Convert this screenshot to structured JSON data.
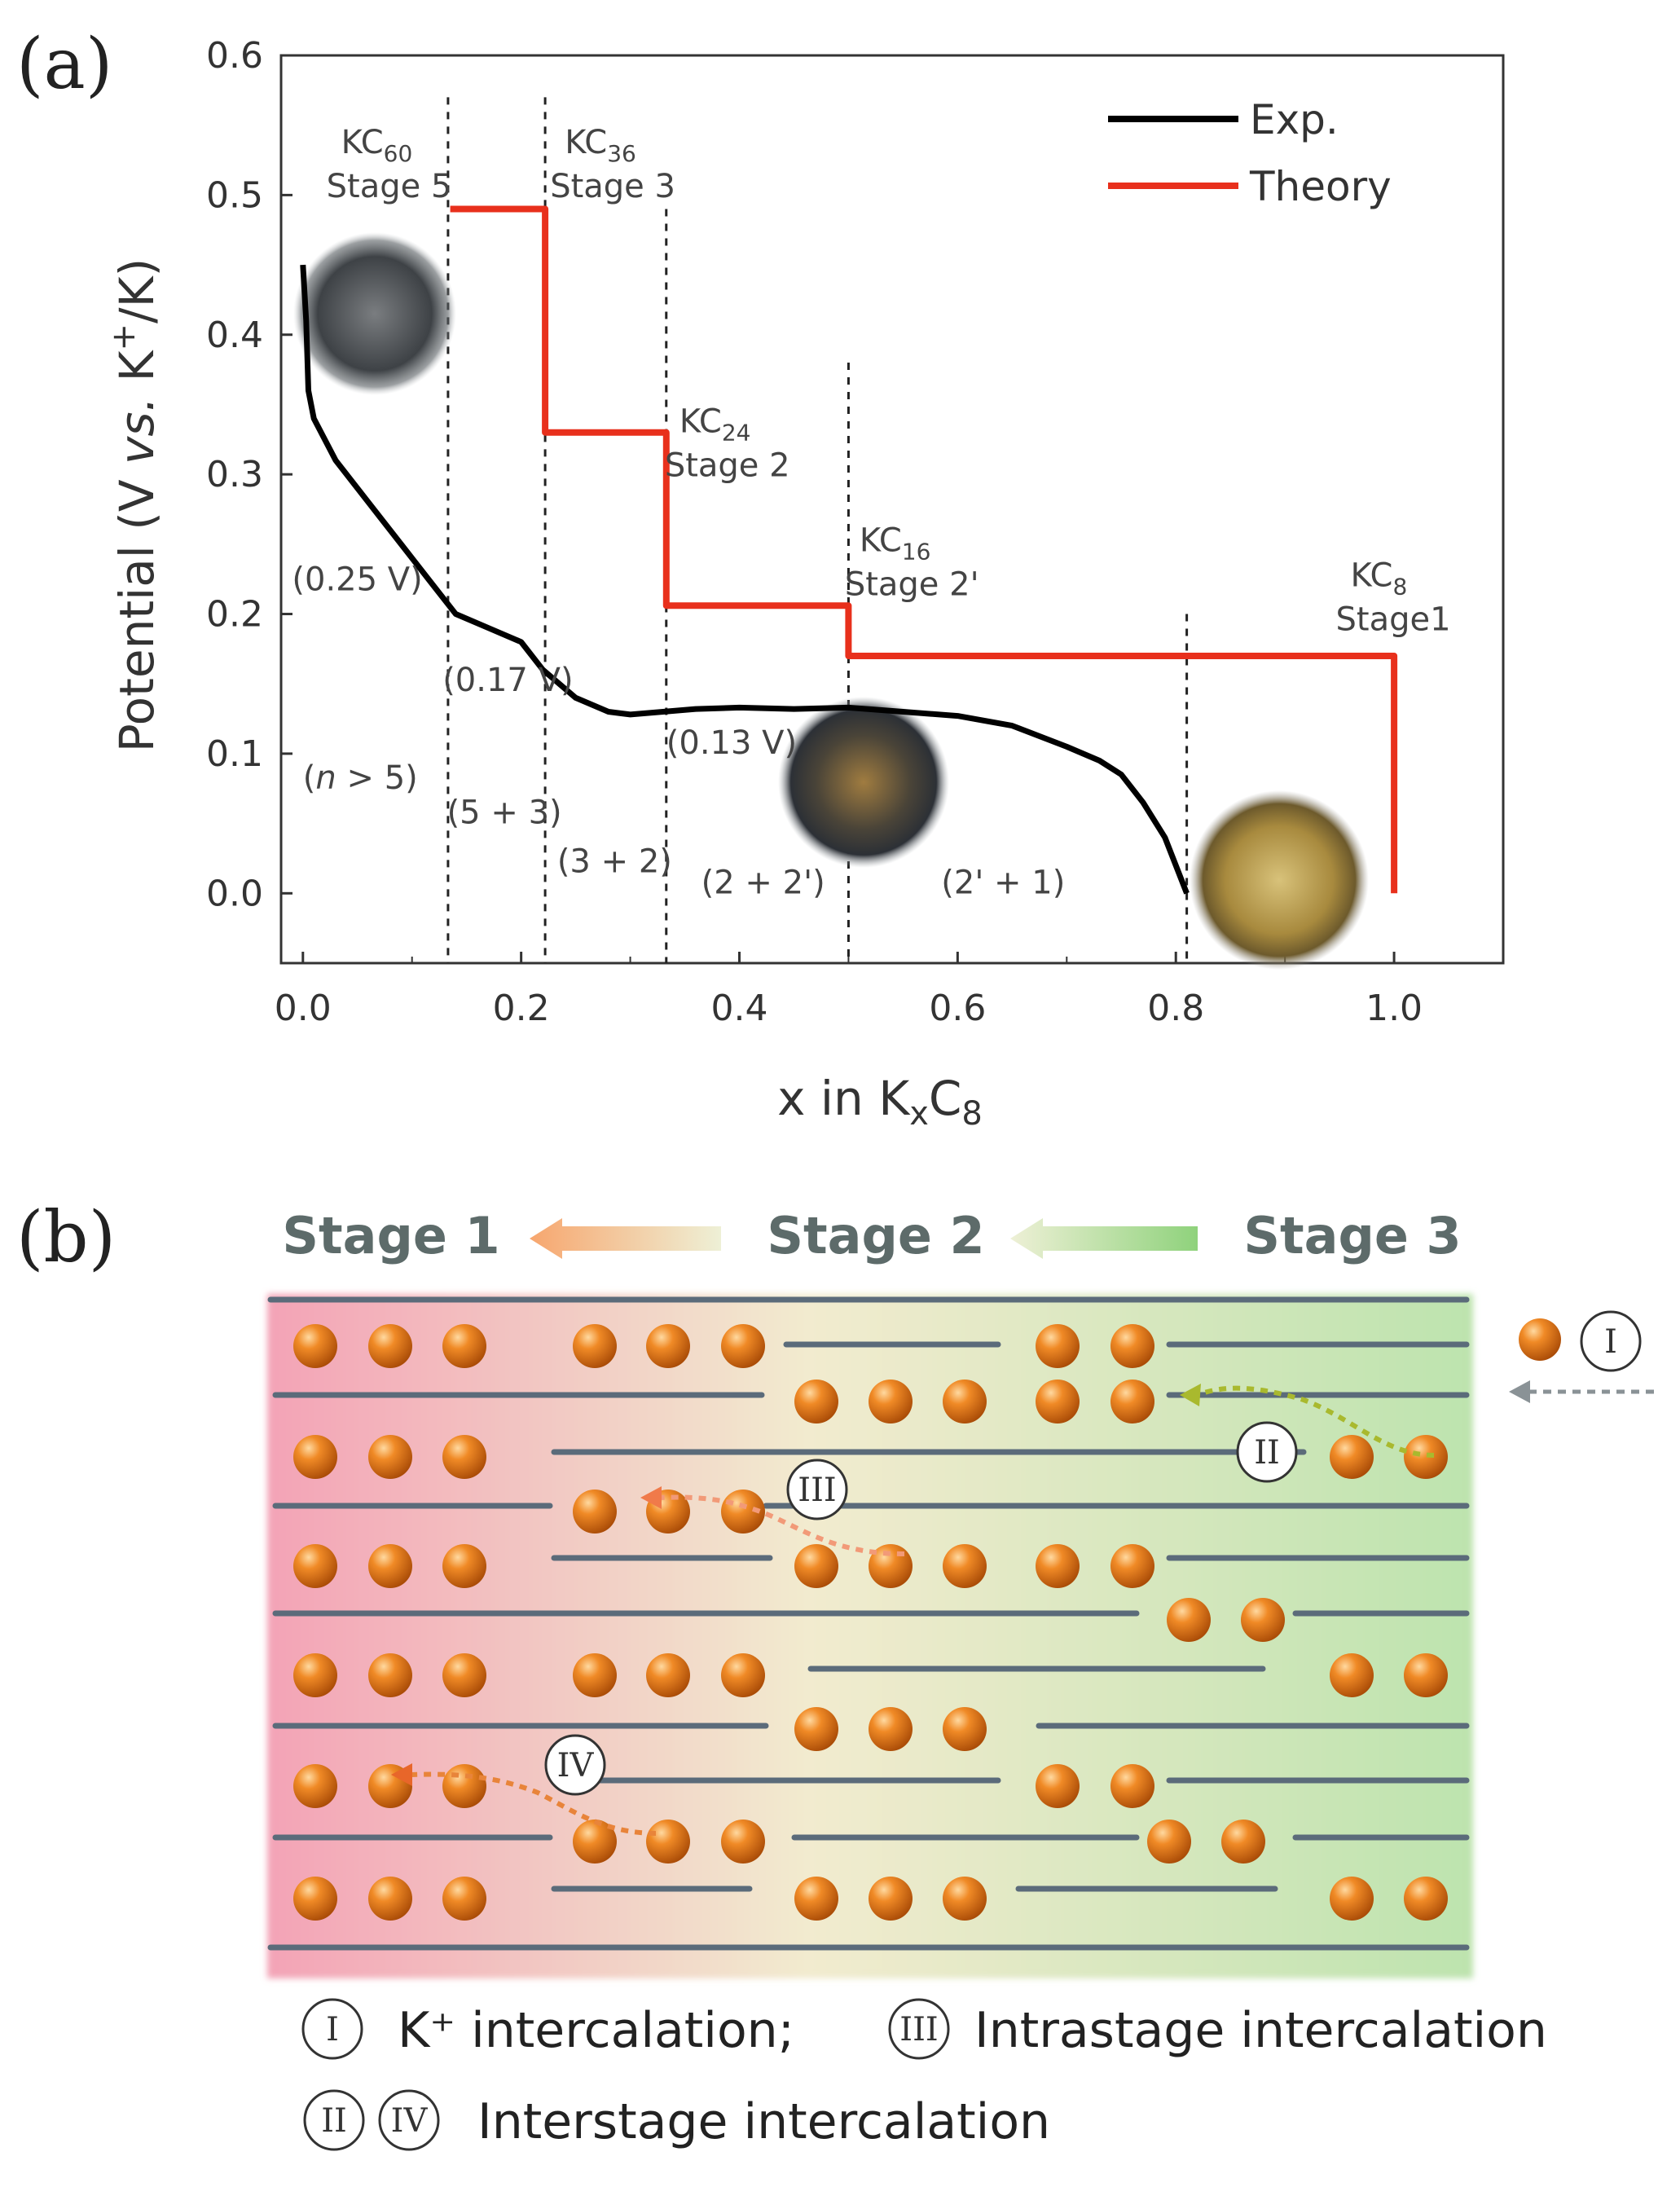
{
  "panel_a_label": "(a)",
  "panel_b_label": "(b)",
  "chart_data": {
    "type": "line",
    "xlabel_main": "x in K",
    "xlabel_sub1": "x",
    "xlabel_sub2": "C",
    "xlabel_sub3": "8",
    "ylabel_main": "Potential (V ",
    "ylabel_italic": "vs.",
    "ylabel_k": " K",
    "ylabel_sup": "+",
    "ylabel_end": "/K)",
    "xlim": [
      -0.02,
      1.1
    ],
    "ylim": [
      -0.05,
      0.6
    ],
    "xticks": [
      "0.0",
      "0.2",
      "0.4",
      "0.6",
      "0.8",
      "1.0"
    ],
    "xtick_values": [
      0.0,
      0.2,
      0.4,
      0.6,
      0.8,
      1.0
    ],
    "yticks": [
      "0.0",
      "0.1",
      "0.2",
      "0.3",
      "0.4",
      "0.5",
      "0.6"
    ],
    "ytick_values": [
      0.0,
      0.1,
      0.2,
      0.3,
      0.4,
      0.5,
      0.6
    ],
    "legend": [
      {
        "name": "Exp.",
        "color": "#000000"
      },
      {
        "name": "Theory",
        "color": "#e8301c"
      }
    ],
    "series": [
      {
        "name": "Exp.",
        "color": "#000000",
        "x": [
          0.0,
          0.003,
          0.005,
          0.01,
          0.03,
          0.06,
          0.09,
          0.12,
          0.14,
          0.17,
          0.2,
          0.22,
          0.25,
          0.28,
          0.3,
          0.33,
          0.36,
          0.4,
          0.45,
          0.5,
          0.55,
          0.6,
          0.65,
          0.7,
          0.73,
          0.75,
          0.77,
          0.79,
          0.81
        ],
        "y": [
          0.45,
          0.41,
          0.36,
          0.34,
          0.31,
          0.28,
          0.25,
          0.22,
          0.2,
          0.19,
          0.18,
          0.16,
          0.14,
          0.13,
          0.128,
          0.13,
          0.132,
          0.133,
          0.132,
          0.133,
          0.13,
          0.127,
          0.12,
          0.105,
          0.095,
          0.085,
          0.065,
          0.04,
          0.0
        ]
      },
      {
        "name": "Theory",
        "color": "#e8301c",
        "x": [
          0.135,
          0.222,
          0.222,
          0.333,
          0.333,
          0.5,
          0.5,
          1.0,
          1.0
        ],
        "y": [
          0.49,
          0.49,
          0.33,
          0.33,
          0.206,
          0.206,
          0.17,
          0.17,
          0.0
        ]
      }
    ],
    "dashed_lines": [
      {
        "x": 0.133,
        "y_top": 0.57
      },
      {
        "x": 0.222,
        "y_top": 0.57
      },
      {
        "x": 0.333,
        "y_top": 0.49
      },
      {
        "x": 0.5,
        "y_top": 0.38
      },
      {
        "x": 0.81,
        "y_top": 0.2
      }
    ],
    "stage_labels": [
      {
        "formula": "KC",
        "sub": "60",
        "stage": "Stage 5",
        "x": 0.035,
        "y": 0.53
      },
      {
        "formula": "KC",
        "sub": "36",
        "stage": "Stage 3",
        "x": 0.24,
        "y": 0.53
      },
      {
        "formula": "KC",
        "sub": "24",
        "stage": "Stage 2",
        "x": 0.345,
        "y": 0.33
      },
      {
        "formula": "KC",
        "sub": "16",
        "stage": "Stage 2'",
        "x": 0.51,
        "y": 0.245
      },
      {
        "formula": "KC",
        "sub": "8",
        "stage": "Stage1",
        "x": 0.96,
        "y": 0.22
      }
    ],
    "annotations": [
      {
        "text": "(0.25 V)",
        "x": -0.01,
        "y": 0.217
      },
      {
        "text": "(0.17 V)",
        "x": 0.128,
        "y": 0.145
      },
      {
        "text": "(0.13 V)",
        "x": 0.333,
        "y": 0.1
      },
      {
        "text": "(n > 5)",
        "x": 0.0,
        "y": 0.075,
        "italic_n": true
      },
      {
        "text": "(5 + 3)",
        "x": 0.132,
        "y": 0.05
      },
      {
        "text": "(3 + 2)",
        "x": 0.233,
        "y": 0.015
      },
      {
        "text": "(2 + 2')",
        "x": 0.365,
        "y": 0.0
      },
      {
        "text": "(2' + 1)",
        "x": 0.585,
        "y": 0.0
      }
    ]
  },
  "diagram": {
    "stage_headers": [
      "Stage 1",
      "Stage 2",
      "Stage 3"
    ],
    "numerals": [
      "I",
      "II",
      "III",
      "IV"
    ],
    "legend_lines": [
      {
        "numerals": [
          "I"
        ],
        "text": "K⁺ intercalation;"
      },
      {
        "numerals": [
          "III"
        ],
        "text": "Intrastage intercalation"
      },
      {
        "numerals": [
          "II",
          "IV"
        ],
        "text": "Interstage intercalation"
      }
    ],
    "colors": {
      "left": "#f4a6b8",
      "mid": "#f1eccd",
      "right": "#bfe3b0",
      "layer": "#5b6b7a",
      "ion": "#e2781c"
    }
  }
}
